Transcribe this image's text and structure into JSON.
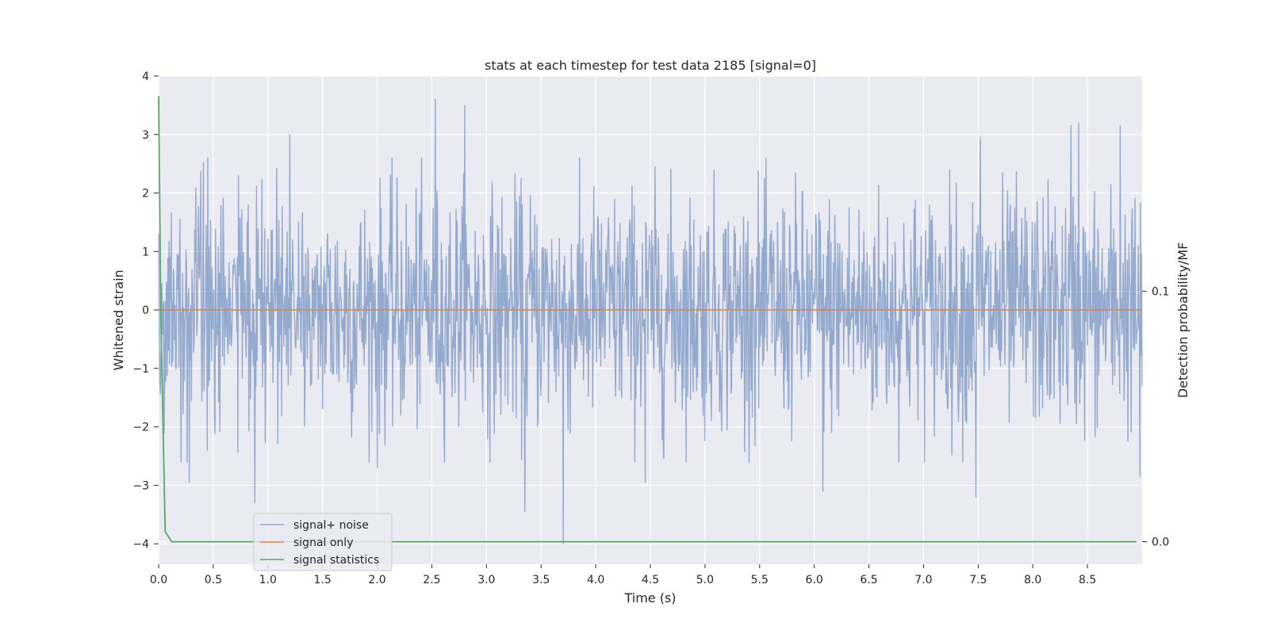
{
  "chart_data": {
    "type": "line",
    "title": "stats at each timestep for test data 2185 [signal=0]",
    "xlabel": "Time (s)",
    "ylabel": "Whitened strain",
    "y2label": "Detection probability/MF",
    "xlim": [
      0,
      9.0
    ],
    "ylim": [
      -4.35,
      4
    ],
    "y2lim": [
      -0.009,
      0.186
    ],
    "xticks": [
      "0.0",
      "0.5",
      "1.0",
      "1.5",
      "2.0",
      "2.5",
      "3.0",
      "3.5",
      "4.0",
      "4.5",
      "5.0",
      "5.5",
      "6.0",
      "6.5",
      "7.0",
      "7.5",
      "8.0",
      "8.5"
    ],
    "yticks": [
      "−4",
      "−3",
      "−2",
      "−1",
      "0",
      "1",
      "2",
      "3",
      "4"
    ],
    "y2ticks": [
      "0.0",
      "0.1"
    ],
    "grid": true,
    "legend_position": "lower-left",
    "series": [
      {
        "name": "signal+ noise",
        "color": "#4c72b0",
        "axis": "left",
        "noise_std": 1.0,
        "sample_count": 1800,
        "extremes": [
          {
            "x": 0.0,
            "y": 1.3
          },
          {
            "x": 0.05,
            "y": -2.1
          },
          {
            "x": 0.28,
            "y": -2.95
          },
          {
            "x": 0.45,
            "y": 2.6
          },
          {
            "x": 0.88,
            "y": -3.3
          },
          {
            "x": 1.2,
            "y": 3.0
          },
          {
            "x": 2.0,
            "y": -2.7
          },
          {
            "x": 2.53,
            "y": 3.6
          },
          {
            "x": 2.8,
            "y": 3.5
          },
          {
            "x": 3.35,
            "y": -3.45
          },
          {
            "x": 3.7,
            "y": -4.0
          },
          {
            "x": 4.45,
            "y": -2.95
          },
          {
            "x": 6.08,
            "y": -3.1
          },
          {
            "x": 7.48,
            "y": -3.2
          },
          {
            "x": 7.52,
            "y": 2.95
          },
          {
            "x": 8.35,
            "y": 3.15
          },
          {
            "x": 8.42,
            "y": 3.2
          },
          {
            "x": 8.8,
            "y": 3.15
          },
          {
            "x": 8.98,
            "y": -2.85
          }
        ]
      },
      {
        "name": "signal only",
        "color": "#dd8452",
        "axis": "left",
        "x": [
          0,
          9.0
        ],
        "y": [
          0,
          0
        ]
      },
      {
        "name": "signal statistics",
        "color": "#55a868",
        "axis": "right",
        "x": [
          0,
          0.02,
          0.06,
          0.12,
          0.2,
          1.0,
          2.0,
          3.0,
          4.0,
          5.0,
          6.0,
          7.0,
          8.0,
          8.95
        ],
        "y": [
          0.178,
          0.09,
          0.004,
          0.0,
          0.0,
          0.0,
          0.0,
          0.0,
          0.0,
          0.0,
          0.0,
          0.0,
          0.0,
          0.0
        ]
      }
    ]
  }
}
